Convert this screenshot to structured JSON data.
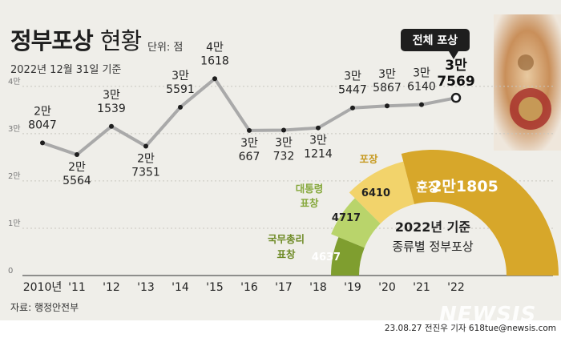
{
  "header": {
    "title_bold": "정부포상",
    "title_light": "현황",
    "unit": "단위: 점",
    "as_of": "2022년 12월 31일 기준"
  },
  "source": "자료: 행정안전부",
  "credit": "23.08.27 전진우 기자 618tue@newsis.com",
  "watermark": "NEWSIS",
  "colors": {
    "line": "#a9a9a9",
    "background": "#efeee9",
    "ring_dark_green": "#7f9e2f",
    "ring_light_green": "#b9d46b",
    "ring_yellow": "#f2d36b",
    "ring_gold": "#d7a72a",
    "callout_bg": "#1e1e1e"
  },
  "chart_data": [
    {
      "type": "line",
      "ylim": [
        0,
        42000
      ],
      "yticks": [
        {
          "value": 0,
          "label": "0"
        },
        {
          "value": 10000,
          "label": "1만"
        },
        {
          "value": 20000,
          "label": "2만"
        },
        {
          "value": 30000,
          "label": "3만"
        },
        {
          "value": 40000,
          "label": "4만"
        }
      ],
      "x": [
        "2010년",
        "'11",
        "'12",
        "'13",
        "'14",
        "'15",
        "'16",
        "'17",
        "'18",
        "'19",
        "'20",
        "'21",
        "'22"
      ],
      "values": [
        28047,
        25564,
        31539,
        27351,
        35591,
        41618,
        30667,
        30732,
        31214,
        35447,
        35867,
        36140,
        37569
      ],
      "value_labels": [
        [
          "2만",
          "8047"
        ],
        [
          "2만",
          "5564"
        ],
        [
          "3만",
          "1539"
        ],
        [
          "2만",
          "7351"
        ],
        [
          "3만",
          "5591"
        ],
        [
          "4만",
          "1618"
        ],
        [
          "3만",
          "667"
        ],
        [
          "3만",
          "732"
        ],
        [
          "3만",
          "1214"
        ],
        [
          "3만",
          "5447"
        ],
        [
          "3만",
          "5867"
        ],
        [
          "3만",
          "6140"
        ],
        [
          "3만",
          "7569"
        ]
      ],
      "callout": "전체 포상"
    },
    {
      "type": "pie",
      "title": "2022년 기준",
      "subtitle": "종류별 정부포상",
      "slices": [
        {
          "name": "국무총리 표창",
          "value": 4637
        },
        {
          "name": "대통령 표창",
          "value": 4717
        },
        {
          "name": "포장",
          "value": 6410
        },
        {
          "name": "훈장",
          "value": 21805,
          "label": "2만1805"
        }
      ]
    }
  ]
}
